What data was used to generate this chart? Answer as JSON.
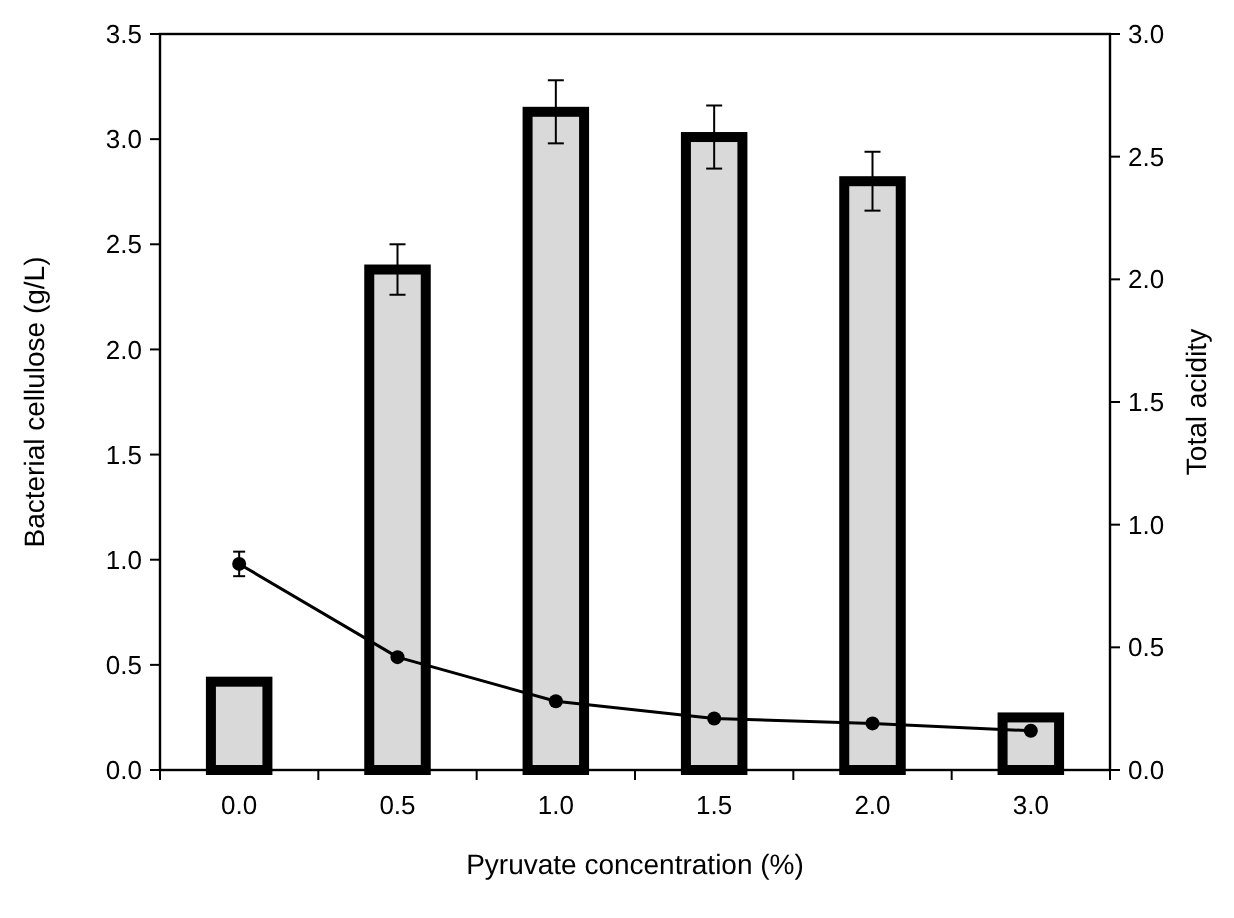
{
  "chart_data": {
    "type": "bar",
    "xlabel": "Pyruvate concentration (%)",
    "ylabel": "Bacterial cellulose (g/L)",
    "y2label": "Total acidity",
    "categories": [
      "0.0",
      "0.5",
      "1.0",
      "1.5",
      "2.0",
      "3.0"
    ],
    "series": [
      {
        "color": "#d9d9d9",
        "values": [
          0.42,
          2.38,
          3.13,
          3.01,
          2.8,
          0.25
        ],
        "errors": [
          0.01,
          0.12,
          0.15,
          0.15,
          0.14,
          null
        ]
      },
      {
        "type": "line",
        "axis": "y2",
        "color": "#000000",
        "marker": "circle",
        "values": [
          0.84,
          0.46,
          0.28,
          0.21,
          0.19,
          0.16
        ],
        "errors": [
          0.05,
          null,
          null,
          null,
          null,
          null
        ]
      }
    ],
    "ylim": [
      0,
      3.5
    ],
    "yticks": [
      {
        "value": 0,
        "label": "0.0"
      },
      0.5,
      {
        "value": 1,
        "label": "1.0"
      },
      1.5,
      {
        "value": 2,
        "label": "2.0"
      },
      2.5,
      {
        "value": 3,
        "label": "3.0"
      },
      3.5
    ],
    "y2lim": [
      0,
      3
    ],
    "y2ticks": [
      {
        "value": 0,
        "label": "0.0"
      },
      0.5,
      {
        "value": 1,
        "label": "1.0"
      },
      1.5,
      {
        "value": 2,
        "label": "2.0"
      },
      2.5,
      {
        "value": 3,
        "label": "3.0"
      }
    ],
    "grid": false
  }
}
